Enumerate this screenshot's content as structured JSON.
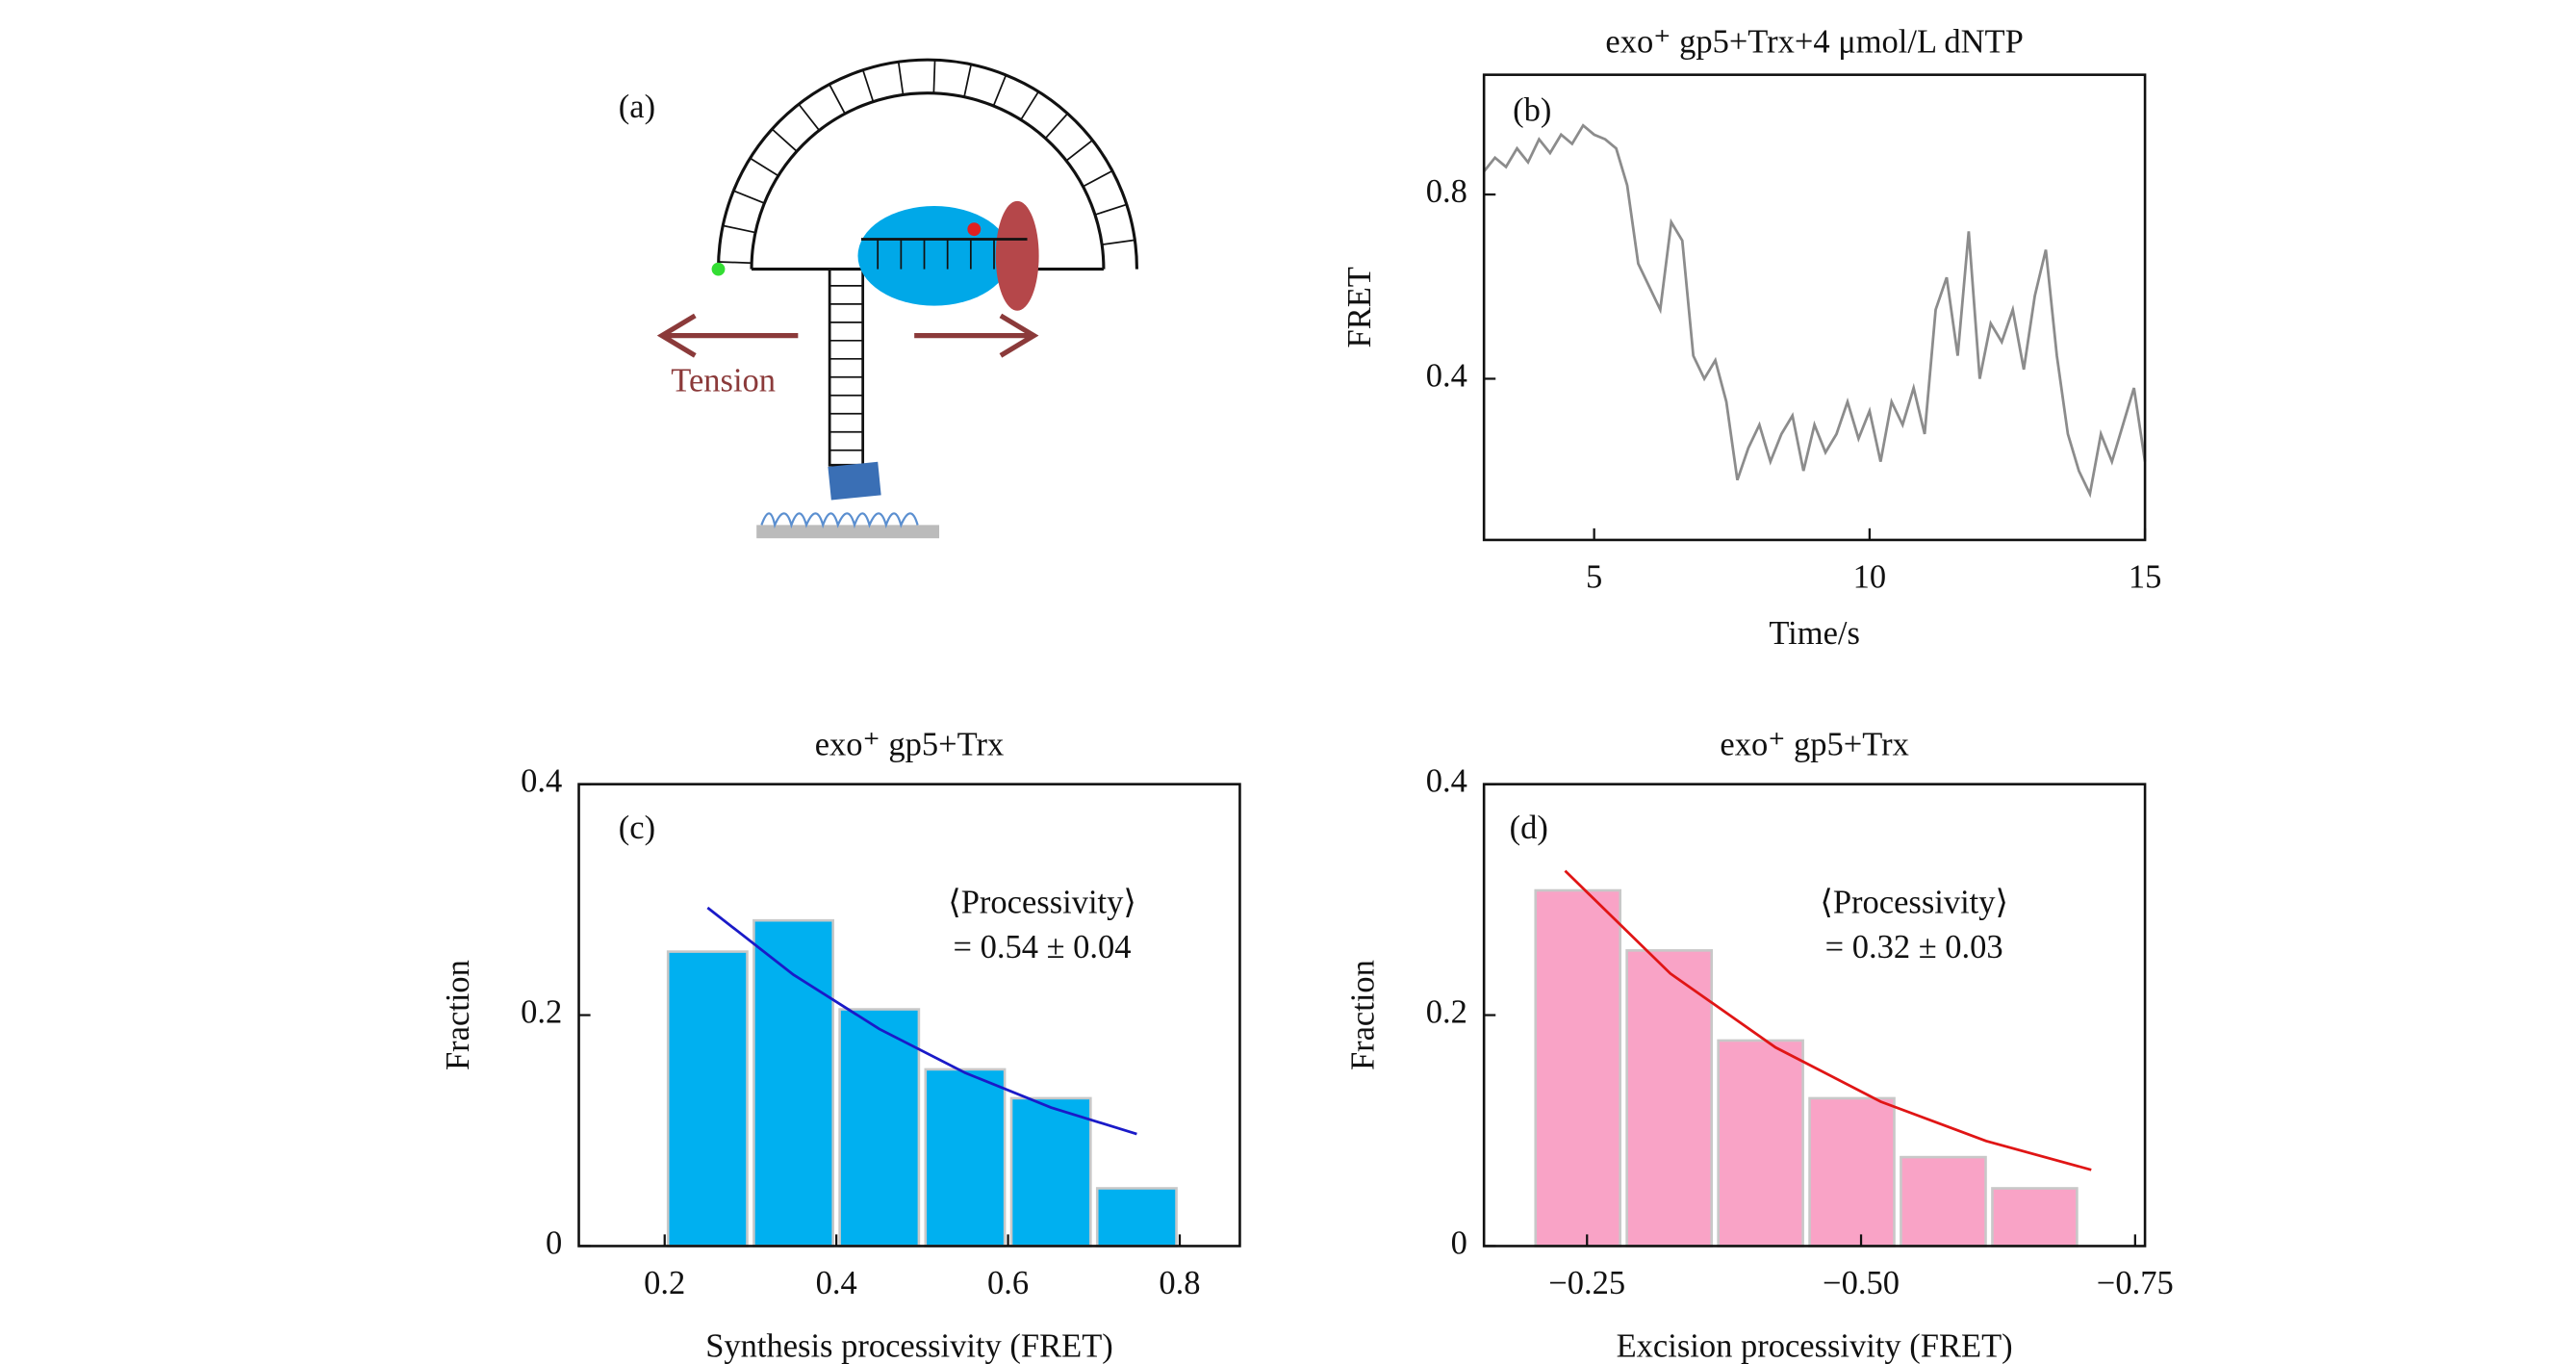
{
  "diagram": {
    "label": "(a)",
    "annotation": "Tension"
  },
  "chart_data": [
    {
      "type": "line",
      "label": "(b)",
      "title": "exo⁺ gp5+Trx+4 μmol/L dNTP",
      "x_label": "Time/s",
      "y_label": "FRET",
      "xlim": [
        3,
        15
      ],
      "xticks": [
        5,
        10,
        15
      ],
      "ylim": [
        0.05,
        1.06
      ],
      "yticks": [
        0.4,
        0.8
      ],
      "series": [
        {
          "color": "#8c8c8c",
          "x": [
            3,
            3.2,
            3.4,
            3.6,
            3.8,
            4,
            4.2,
            4.4,
            4.6,
            4.8,
            5,
            5.2,
            5.4,
            5.6,
            5.8,
            6,
            6.2,
            6.4,
            6.6,
            6.8,
            7,
            7.2,
            7.4,
            7.6,
            7.8,
            8,
            8.2,
            8.4,
            8.6,
            8.8,
            9,
            9.2,
            9.4,
            9.6,
            9.8,
            10,
            10.2,
            10.4,
            10.6,
            10.8,
            11,
            11.2,
            11.4,
            11.6,
            11.8,
            12,
            12.2,
            12.4,
            12.6,
            12.8,
            13,
            13.2,
            13.4,
            13.6,
            13.8,
            14,
            14.2,
            14.4,
            14.6,
            14.8,
            15
          ],
          "values": [
            0.85,
            0.88,
            0.86,
            0.9,
            0.87,
            0.92,
            0.89,
            0.93,
            0.91,
            0.95,
            0.93,
            0.92,
            0.9,
            0.82,
            0.65,
            0.6,
            0.55,
            0.74,
            0.7,
            0.45,
            0.4,
            0.44,
            0.35,
            0.18,
            0.25,
            0.3,
            0.22,
            0.28,
            0.32,
            0.2,
            0.3,
            0.24,
            0.28,
            0.35,
            0.27,
            0.33,
            0.22,
            0.35,
            0.3,
            0.38,
            0.28,
            0.55,
            0.62,
            0.45,
            0.72,
            0.4,
            0.52,
            0.48,
            0.55,
            0.42,
            0.58,
            0.68,
            0.45,
            0.28,
            0.2,
            0.15,
            0.28,
            0.22,
            0.3,
            0.38,
            0.22
          ]
        }
      ]
    },
    {
      "type": "histogram",
      "label": "(c)",
      "title": "exo⁺ gp5+Trx",
      "x_label": "Synthesis processivity (FRET)",
      "y_label": "Fraction",
      "annotations": [
        "⟨Processivity⟩",
        "= 0.54 ± 0.04"
      ],
      "xlim": [
        0.1,
        0.87
      ],
      "xticks": [
        0.2,
        0.4,
        0.6,
        0.8
      ],
      "ylim": [
        0,
        0.4
      ],
      "yticks": [
        0,
        0.2,
        0.4
      ],
      "bins": [
        0.2,
        0.3,
        0.4,
        0.5,
        0.6,
        0.7,
        0.8
      ],
      "values": [
        0.255,
        0.282,
        0.205,
        0.153,
        0.128,
        0.05
      ],
      "color": "#00b0f0",
      "fit": {
        "color": "#1a1ac8",
        "x": [
          0.25,
          0.35,
          0.45,
          0.55,
          0.65,
          0.75
        ],
        "values": [
          0.293,
          0.235,
          0.188,
          0.15,
          0.12,
          0.097
        ]
      }
    },
    {
      "type": "histogram",
      "label": "(d)",
      "title": "exo⁺ gp5+Trx",
      "x_label": "Excision processivity (FRET)",
      "y_label": "Fraction",
      "annotations": [
        "⟨Processivity⟩",
        "= 0.32 ± 0.03"
      ],
      "xlim": [
        -0.156,
        -0.759
      ],
      "xticks": [
        {
          "value": -0.25,
          "label": "−0.25"
        },
        {
          "value": -0.5,
          "label": "−0.50"
        },
        {
          "value": -0.75,
          "label": "−0.75"
        }
      ],
      "ylim": [
        0,
        0.4
      ],
      "yticks": [
        0,
        0.2,
        0.4
      ],
      "bins": [
        -0.2,
        -0.2833,
        -0.3667,
        -0.45,
        -0.5333,
        -0.6167,
        -0.7
      ],
      "values": [
        0.308,
        0.256,
        0.178,
        0.128,
        0.077,
        0.05
      ],
      "color": "#f9a3c6",
      "fit": {
        "color": "#e01515",
        "x": [
          -0.23,
          -0.326,
          -0.422,
          -0.518,
          -0.614,
          -0.71
        ],
        "values": [
          0.325,
          0.236,
          0.172,
          0.125,
          0.091,
          0.066
        ]
      }
    }
  ]
}
